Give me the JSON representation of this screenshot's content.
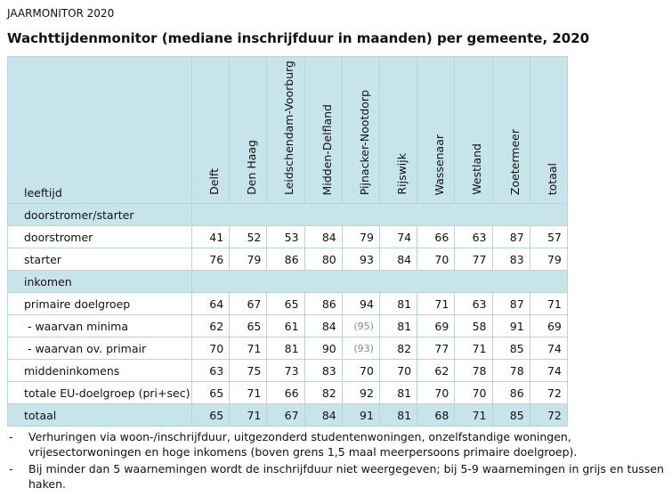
{
  "header": {
    "kicker": "JAARMONITOR 2020",
    "title": "Wachttijdenmonitor (mediane inschrijfduur in maanden) per gemeente, 2020"
  },
  "table": {
    "corner": "leeftijd",
    "columns": [
      "Delft",
      "Den Haag",
      "Leidschendam-Voorburg",
      "Midden-Delfland",
      "Pijnacker-Nootdorp",
      "Rijswijk",
      "Wassenaar",
      "Westland",
      "Zoetermeer",
      "totaal"
    ],
    "rows": [
      {
        "label": "doorstromer/starter"
      },
      {
        "label": "doorstromer",
        "values": [
          41,
          52,
          53,
          84,
          79,
          74,
          66,
          63,
          87,
          57
        ]
      },
      {
        "label": "starter",
        "values": [
          76,
          79,
          86,
          80,
          93,
          84,
          70,
          77,
          83,
          79
        ]
      },
      {
        "label": "inkomen"
      },
      {
        "label": "primaire doelgroep",
        "values": [
          64,
          67,
          65,
          86,
          94,
          81,
          71,
          63,
          87,
          71
        ]
      },
      {
        "label": " - waarvan minima",
        "values": [
          62,
          65,
          61,
          84,
          "(95)",
          81,
          69,
          58,
          91,
          69
        ]
      },
      {
        "label": " - waarvan ov. primair",
        "values": [
          70,
          71,
          81,
          90,
          "(93)",
          82,
          77,
          71,
          85,
          74
        ]
      },
      {
        "label": "middeninkomens",
        "values": [
          63,
          75,
          73,
          83,
          70,
          70,
          62,
          78,
          78,
          74
        ]
      },
      {
        "label": "totale EU-doelgroep (pri+sec)",
        "values": [
          65,
          71,
          66,
          82,
          92,
          81,
          70,
          70,
          86,
          72
        ]
      },
      {
        "label": "totaal",
        "values": [
          65,
          71,
          67,
          84,
          91,
          81,
          68,
          71,
          85,
          72
        ]
      }
    ]
  },
  "notes": [
    "Verhuringen via woon-/inschrijfduur, uitgezonderd studentenwoningen, onzelfstandige woningen, vrijesectorwoningen en hoge inkomens (boven grens 1,5 maal meerpersoons primaire doelgroep).",
    "Bij minder dan 5 waarnemingen wordt de inschrijfduur niet weergegeven; bij 5-9 waarnemingen in grijs en tussen haken."
  ]
}
